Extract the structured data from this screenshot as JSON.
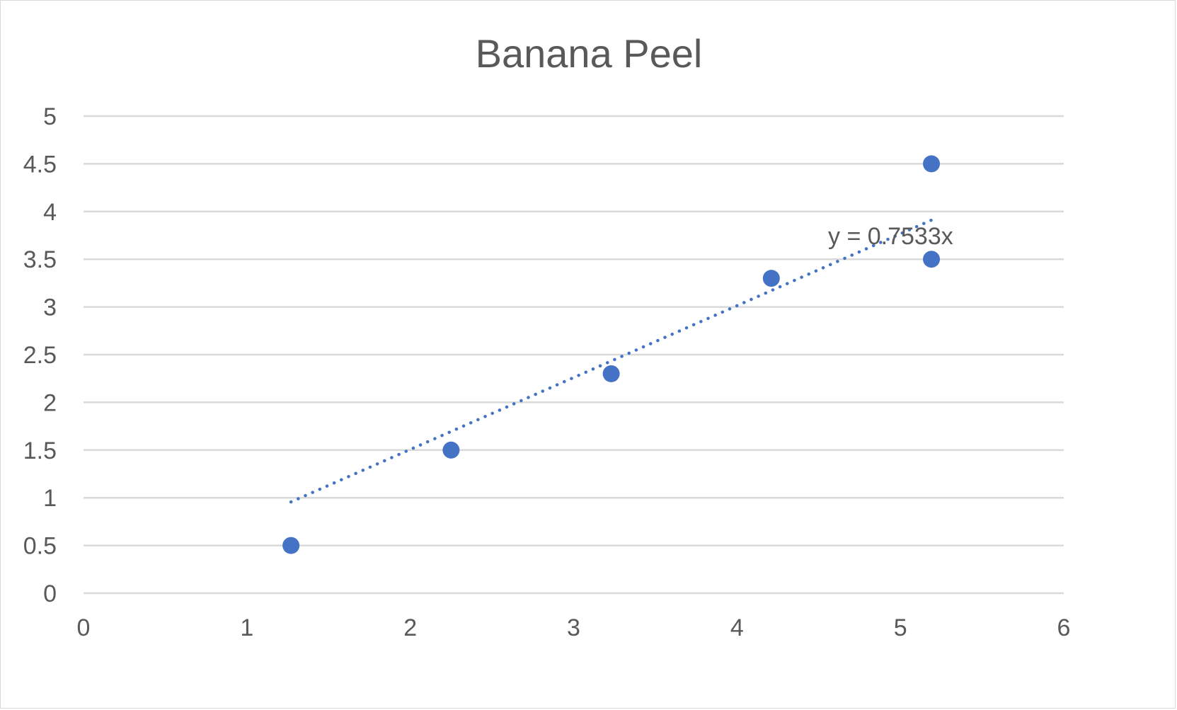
{
  "chart_data": {
    "type": "scatter",
    "title": "Banana Peel",
    "xlabel": "",
    "ylabel": "",
    "xlim": [
      0,
      6
    ],
    "ylim": [
      0,
      5
    ],
    "x_ticks": [
      "0",
      "1",
      "2",
      "3",
      "4",
      "5",
      "6"
    ],
    "y_ticks": [
      "0",
      "0.5",
      "1",
      "1.5",
      "2",
      "2.5",
      "3",
      "3.5",
      "4",
      "4.5",
      "5"
    ],
    "grid": "horizontal",
    "legend": "none",
    "series": [
      {
        "x": [
          1.27,
          2.25,
          3.23,
          4.21,
          5.19,
          5.19
        ],
        "y": [
          0.5,
          1.5,
          2.3,
          3.3,
          4.5,
          3.5
        ],
        "color": "#4472c4"
      }
    ],
    "trendline": {
      "type": "linear",
      "slope": 0.7533,
      "intercept": 0,
      "x_range": [
        1.27,
        5.19
      ],
      "style": "dotted",
      "color": "#4472c4",
      "equation_label": "y = 0.7533x"
    },
    "colors": {
      "marker": "#4472c4",
      "gridline": "#d9d9d9",
      "text": "#595959",
      "border": "#d9d9d9"
    }
  }
}
